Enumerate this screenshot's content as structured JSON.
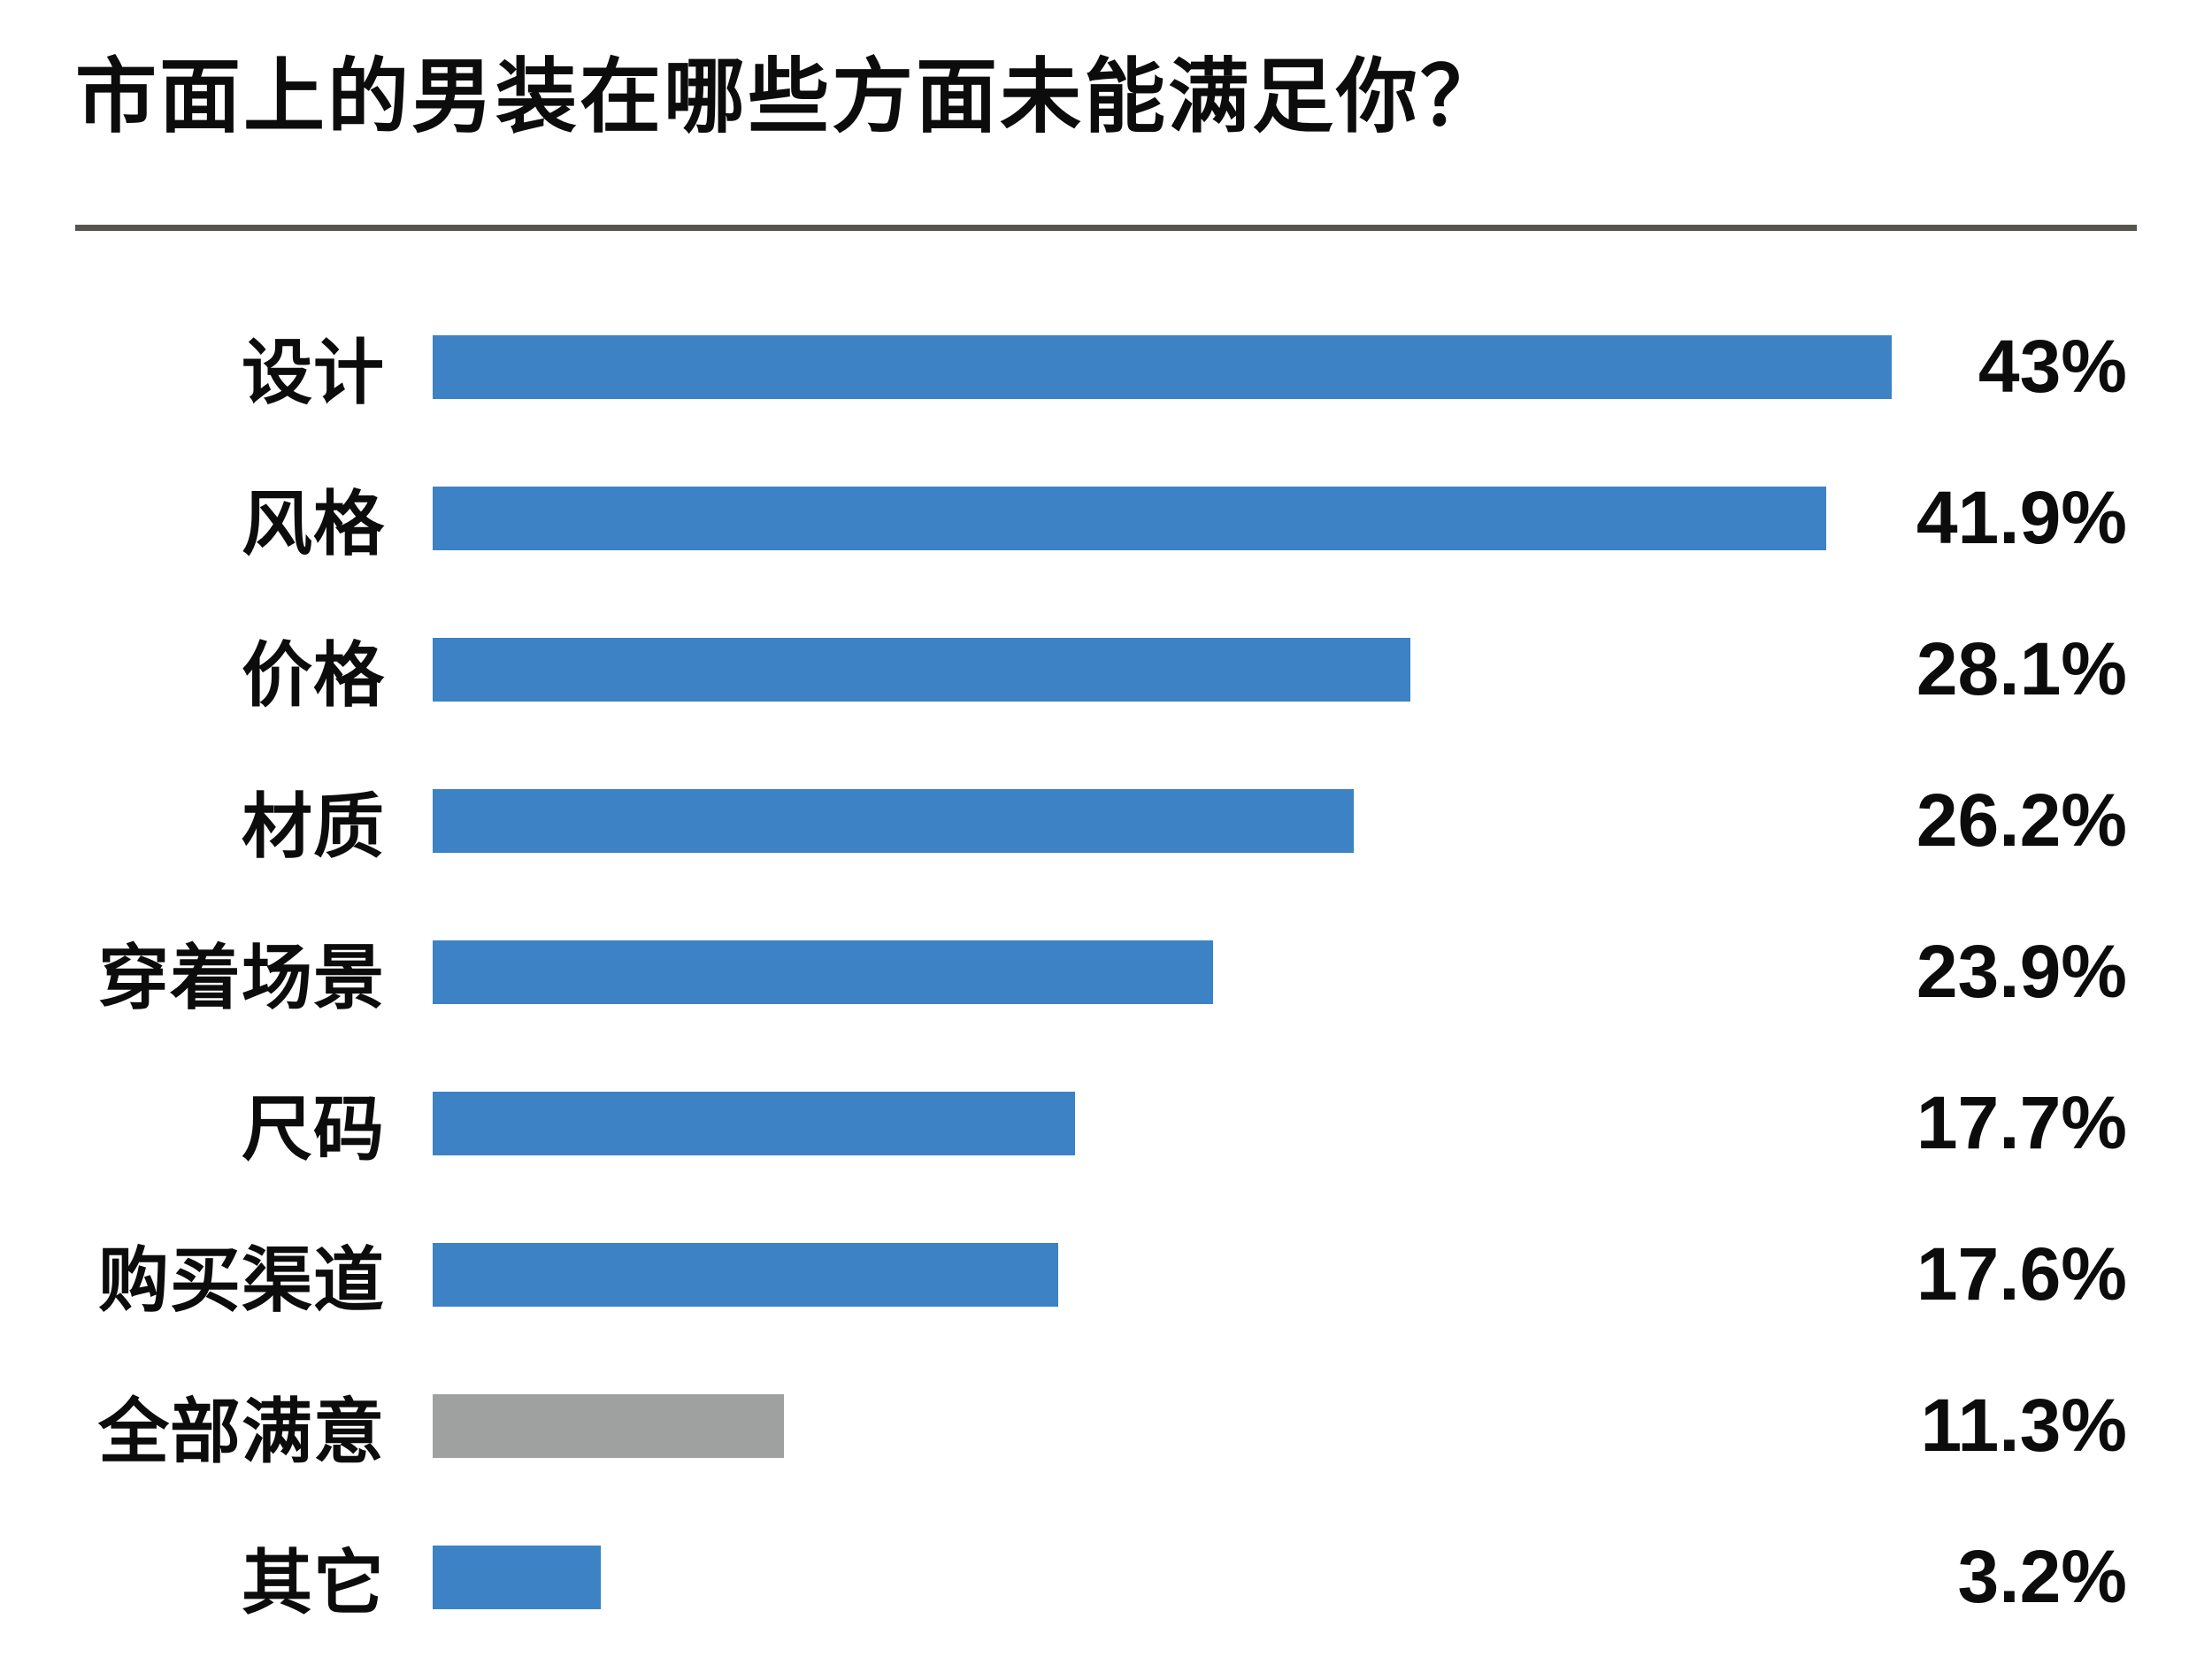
{
  "chart_data": {
    "type": "bar",
    "orientation": "horizontal",
    "title": "市面上的男装在哪些方面未能满足你？",
    "xlabel": "",
    "ylabel": "",
    "xlim": [
      0,
      43
    ],
    "grid": false,
    "legend": false,
    "value_label_position": "right",
    "categories": [
      "设计",
      "风格",
      "价格",
      "材质",
      "穿着场景",
      "尺码",
      "购买渠道",
      "全部满意",
      "其它"
    ],
    "values": [
      43,
      41.9,
      28.1,
      26.2,
      23.9,
      17.7,
      17.6,
      11.3,
      3.2
    ],
    "colors": {
      "bar_default": "#3c82c5",
      "bar_muted": "#9fa0a0",
      "text": "#0c0c0c",
      "divider": "#56544f"
    },
    "items": [
      {
        "label": "设计",
        "value": 43,
        "value_label": "43%",
        "bar_pct": 100,
        "muted": false
      },
      {
        "label": "风格",
        "value": 41.9,
        "value_label": "41.9%",
        "bar_pct": 95.5,
        "muted": false
      },
      {
        "label": "价格",
        "value": 28.1,
        "value_label": "28.1%",
        "bar_pct": 67.0,
        "muted": false
      },
      {
        "label": "材质",
        "value": 26.2,
        "value_label": "26.2%",
        "bar_pct": 63.1,
        "muted": false
      },
      {
        "label": "穿着场景",
        "value": 23.9,
        "value_label": "23.9%",
        "bar_pct": 53.5,
        "muted": false
      },
      {
        "label": "尺码",
        "value": 17.7,
        "value_label": "17.7%",
        "bar_pct": 44.0,
        "muted": false
      },
      {
        "label": "购买渠道",
        "value": 17.6,
        "value_label": "17.6%",
        "bar_pct": 42.9,
        "muted": false
      },
      {
        "label": "全部满意",
        "value": 11.3,
        "value_label": "11.3%",
        "bar_pct": 24.1,
        "muted": true
      },
      {
        "label": "其它",
        "value": 3.2,
        "value_label": "3.2%",
        "bar_pct": 11.5,
        "muted": false
      }
    ]
  }
}
